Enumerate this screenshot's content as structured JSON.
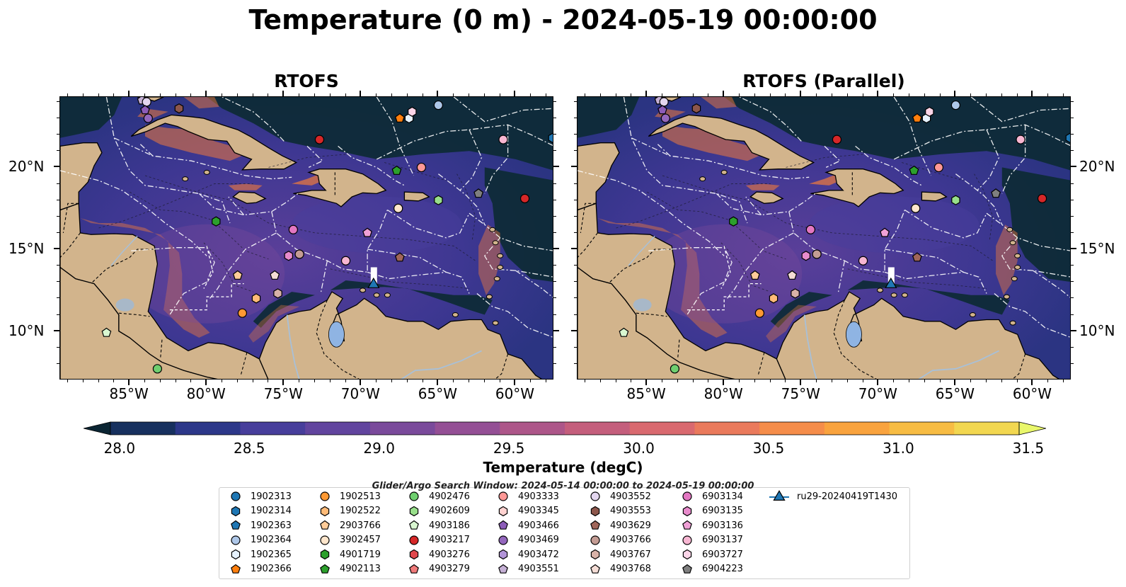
{
  "title": "Temperature (0 m) - 2024-05-19 00:00:00",
  "panels": [
    {
      "title": "RTOFS"
    },
    {
      "title": "RTOFS (Parallel)"
    }
  ],
  "map": {
    "lon_range": [
      -89.5,
      -57.5
    ],
    "lat_range": [
      7.0,
      24.3
    ],
    "lon_ticks": [
      "85°W",
      "80°W",
      "75°W",
      "70°W",
      "65°W",
      "60°W"
    ],
    "lon_tick_values": [
      -85,
      -80,
      -75,
      -70,
      -65,
      -60
    ],
    "lat_ticks": [
      "20°N",
      "15°N",
      "10°N"
    ],
    "lat_tick_values": [
      20,
      15,
      10
    ],
    "colors": {
      "land": "#d2b48c",
      "deep_ocean": "#0c2a33",
      "warm_water": "#f07a3c",
      "eez_lines": "#ffffff",
      "lakes": "#8fb4e3"
    }
  },
  "colorbar": {
    "title": "Temperature (degC)",
    "tick_labels": [
      "28.0",
      "28.5",
      "29.0",
      "29.5",
      "30.0",
      "30.5",
      "31.0",
      "31.5"
    ],
    "colors": [
      "#0b2533",
      "#17305e",
      "#2c3789",
      "#473e9b",
      "#61449e",
      "#7a4a9b",
      "#944f95",
      "#ad5689",
      "#c45e7c",
      "#d9696f",
      "#ea7a5c",
      "#f58d4a",
      "#f9a33e",
      "#f7bc43",
      "#f2d750",
      "#e9f76b"
    ]
  },
  "search_window": "Glider/Argo Search Window: 2024-05-14 00:00:00 to 2024-05-19 00:00:00",
  "legend": [
    {
      "id": "1902313",
      "color": "#1f77b4",
      "shape": "circle"
    },
    {
      "id": "1902314",
      "color": "#1f77b4",
      "shape": "hexagon"
    },
    {
      "id": "1902363",
      "color": "#1f77b4",
      "shape": "pentagon"
    },
    {
      "id": "1902364",
      "color": "#aec7e8",
      "shape": "circle"
    },
    {
      "id": "1902365",
      "color": "#e6f2ff",
      "shape": "hexagon"
    },
    {
      "id": "1902366",
      "color": "#ff7f0e",
      "shape": "pentagon"
    },
    {
      "id": "1902513",
      "color": "#ff9933",
      "shape": "circle"
    },
    {
      "id": "1902522",
      "color": "#ffbb78",
      "shape": "hexagon"
    },
    {
      "id": "2903766",
      "color": "#ffcc99",
      "shape": "pentagon"
    },
    {
      "id": "3902457",
      "color": "#ffe6cc",
      "shape": "circle"
    },
    {
      "id": "4901719",
      "color": "#2ca02c",
      "shape": "hexagon"
    },
    {
      "id": "4902113",
      "color": "#2ca02c",
      "shape": "pentagon"
    },
    {
      "id": "4902476",
      "color": "#6fcf6f",
      "shape": "circle"
    },
    {
      "id": "4902609",
      "color": "#98df8a",
      "shape": "hexagon"
    },
    {
      "id": "4903186",
      "color": "#d9f7d0",
      "shape": "pentagon"
    },
    {
      "id": "4903217",
      "color": "#d62728",
      "shape": "circle"
    },
    {
      "id": "4903276",
      "color": "#e0474c",
      "shape": "hexagon"
    },
    {
      "id": "4903279",
      "color": "#f07a7a",
      "shape": "pentagon"
    },
    {
      "id": "4903333",
      "color": "#ff9896",
      "shape": "circle"
    },
    {
      "id": "4903345",
      "color": "#ffd2d0",
      "shape": "hexagon"
    },
    {
      "id": "4903466",
      "color": "#8c5cb8",
      "shape": "pentagon"
    },
    {
      "id": "4903469",
      "color": "#9467bd",
      "shape": "circle"
    },
    {
      "id": "4903472",
      "color": "#b294d8",
      "shape": "hexagon"
    },
    {
      "id": "4903551",
      "color": "#c5b0d5",
      "shape": "pentagon"
    },
    {
      "id": "4903552",
      "color": "#e3d6ef",
      "shape": "circle"
    },
    {
      "id": "4903553",
      "color": "#8c564b",
      "shape": "hexagon"
    },
    {
      "id": "4903629",
      "color": "#a0665a",
      "shape": "pentagon"
    },
    {
      "id": "4903766",
      "color": "#c49c94",
      "shape": "circle"
    },
    {
      "id": "4903767",
      "color": "#d8b2a8",
      "shape": "hexagon"
    },
    {
      "id": "4903768",
      "color": "#f5ddd6",
      "shape": "pentagon"
    },
    {
      "id": "6903134",
      "color": "#e377c2",
      "shape": "circle"
    },
    {
      "id": "6903135",
      "color": "#e88bcc",
      "shape": "hexagon"
    },
    {
      "id": "6903136",
      "color": "#f0a0d6",
      "shape": "pentagon"
    },
    {
      "id": "6903137",
      "color": "#f7b6d2",
      "shape": "circle"
    },
    {
      "id": "6903727",
      "color": "#fbd5e8",
      "shape": "hexagon"
    },
    {
      "id": "6904223",
      "color": "#7f7f7f",
      "shape": "pentagon"
    },
    {
      "id": "ru29-20240419T1430",
      "color": "#1f77b4",
      "shape": "triangle"
    }
  ],
  "floats": [
    {
      "id": "4903551",
      "lon": -84.2,
      "lat": 24.1
    },
    {
      "id": "4903552",
      "lon": -83.9,
      "lat": 24.0
    },
    {
      "id": "4903466",
      "lon": -84.0,
      "lat": 23.5
    },
    {
      "id": "4903469",
      "lon": -83.8,
      "lat": 23.0
    },
    {
      "id": "4903553",
      "lon": -81.8,
      "lat": 23.6
    },
    {
      "id": "1902364",
      "lon": -65.0,
      "lat": 23.8
    },
    {
      "id": "1902366",
      "lon": -67.5,
      "lat": 23.0
    },
    {
      "id": "1902365",
      "lon": -66.9,
      "lat": 23.0
    },
    {
      "id": "6903727",
      "lon": -66.7,
      "lat": 23.4
    },
    {
      "id": "4903217",
      "lon": -72.7,
      "lat": 21.7
    },
    {
      "id": "6903137",
      "lon": -60.8,
      "lat": 21.7
    },
    {
      "id": "1902314",
      "lon": -57.6,
      "lat": 21.8
    },
    {
      "id": "4902113",
      "lon": -67.7,
      "lat": 19.8
    },
    {
      "id": "4903333",
      "lon": -66.1,
      "lat": 20.0
    },
    {
      "id": "6904223",
      "lon": -62.4,
      "lat": 18.4
    },
    {
      "id": "4903217",
      "lon": -59.4,
      "lat": 18.1
    },
    {
      "id": "4902609",
      "lon": -65.0,
      "lat": 18.0
    },
    {
      "id": "3902457",
      "lon": -67.6,
      "lat": 17.5
    },
    {
      "id": "4901719",
      "lon": -79.4,
      "lat": 16.7
    },
    {
      "id": "6903134",
      "lon": -74.4,
      "lat": 16.2
    },
    {
      "id": "6903136",
      "lon": -69.6,
      "lat": 16.0
    },
    {
      "id": "6903135",
      "lon": -74.7,
      "lat": 14.6
    },
    {
      "id": "4903766",
      "lon": -74.0,
      "lat": 14.7
    },
    {
      "id": "4903629",
      "lon": -67.5,
      "lat": 14.5
    },
    {
      "id": "6903137",
      "lon": -71.0,
      "lat": 14.3
    },
    {
      "id": "2903766",
      "lon": -78.0,
      "lat": 13.4
    },
    {
      "id": "4903768",
      "lon": -75.6,
      "lat": 13.4
    },
    {
      "id": "1902522",
      "lon": -76.8,
      "lat": 12.0
    },
    {
      "id": "4903767",
      "lon": -75.4,
      "lat": 12.3
    },
    {
      "id": "1902513",
      "lon": -77.7,
      "lat": 11.1
    },
    {
      "id": "4903186",
      "lon": -86.5,
      "lat": 9.9
    },
    {
      "id": "4902476",
      "lon": -83.2,
      "lat": 7.7
    }
  ],
  "glider": {
    "id": "ru29-20240419T1430",
    "lon": -69.2,
    "lat": 12.8
  }
}
